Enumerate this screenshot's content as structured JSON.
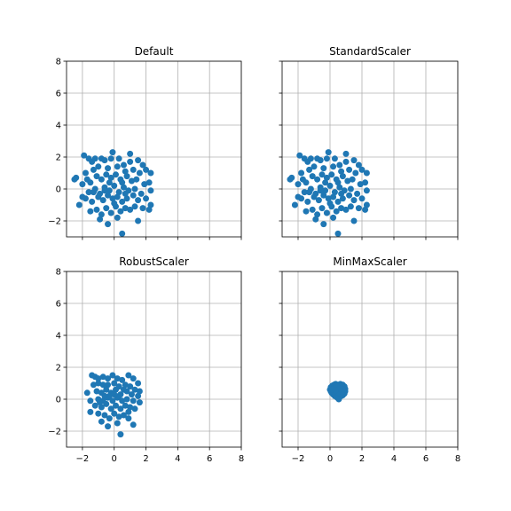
{
  "colors": {
    "points": "#1f77b4",
    "grid": "#b0b0b0",
    "background": "#ffffff"
  },
  "axes": {
    "x_range": [
      -3,
      8
    ],
    "y_range": [
      -3,
      8
    ],
    "x_ticks": [
      -2,
      0,
      2,
      4,
      6,
      8
    ],
    "y_ticks": [
      -2,
      0,
      2,
      4,
      6,
      8
    ],
    "x_tick_labels": [
      "−2",
      "0",
      "2",
      "4",
      "6",
      "8"
    ],
    "y_tick_labels": [
      "−2",
      "0",
      "2",
      "4",
      "6",
      "8"
    ]
  },
  "chart_data": [
    {
      "type": "scatter",
      "title": "Default",
      "grid": true,
      "xlim": [
        -3,
        8
      ],
      "ylim": [
        -3,
        8
      ],
      "points": [
        [
          -2.5,
          0.6
        ],
        [
          -2.4,
          0.7
        ],
        [
          -1.9,
          2.1
        ],
        [
          -1.6,
          1.9
        ],
        [
          -1.4,
          1.7
        ],
        [
          -1.2,
          1.9
        ],
        [
          -0.8,
          1.9
        ],
        [
          -0.6,
          1.8
        ],
        [
          -0.2,
          1.9
        ],
        [
          -0.1,
          2.3
        ],
        [
          0.3,
          1.9
        ],
        [
          0.6,
          1.5
        ],
        [
          1.0,
          2.2
        ],
        [
          1.5,
          1.8
        ],
        [
          1.8,
          1.5
        ],
        [
          2.0,
          1.2
        ],
        [
          2.3,
          1.0
        ],
        [
          -1.8,
          1.0
        ],
        [
          -1.3,
          1.2
        ],
        [
          -1.0,
          1.4
        ],
        [
          -0.4,
          1.3
        ],
        [
          0.2,
          1.4
        ],
        [
          0.7,
          1.1
        ],
        [
          1.2,
          1.2
        ],
        [
          1.6,
          1.0
        ],
        [
          -2.0,
          0.3
        ],
        [
          -1.7,
          0.6
        ],
        [
          -1.5,
          0.4
        ],
        [
          -1.1,
          0.8
        ],
        [
          -0.8,
          0.6
        ],
        [
          -0.5,
          0.9
        ],
        [
          -0.2,
          0.7
        ],
        [
          0.1,
          0.9
        ],
        [
          0.4,
          0.6
        ],
        [
          0.8,
          0.8
        ],
        [
          1.1,
          0.5
        ],
        [
          1.4,
          0.6
        ],
        [
          1.9,
          0.3
        ],
        [
          2.2,
          0.4
        ],
        [
          -2.0,
          -0.5
        ],
        [
          -1.6,
          -0.2
        ],
        [
          -1.2,
          0.0
        ],
        [
          -0.9,
          -0.3
        ],
        [
          -0.6,
          0.1
        ],
        [
          -0.3,
          -0.1
        ],
        [
          0.0,
          0.2
        ],
        [
          0.3,
          -0.2
        ],
        [
          0.6,
          0.1
        ],
        [
          0.9,
          -0.1
        ],
        [
          1.3,
          0.0
        ],
        [
          1.7,
          -0.3
        ],
        [
          2.3,
          -0.1
        ],
        [
          -2.2,
          -1.0
        ],
        [
          -1.8,
          -0.6
        ],
        [
          -1.4,
          -0.8
        ],
        [
          -1.0,
          -0.5
        ],
        [
          -0.7,
          -0.7
        ],
        [
          -0.4,
          -0.4
        ],
        [
          -0.1,
          -0.6
        ],
        [
          0.2,
          -0.5
        ],
        [
          0.5,
          -0.8
        ],
        [
          0.8,
          -0.6
        ],
        [
          1.2,
          -0.4
        ],
        [
          1.5,
          -0.7
        ],
        [
          2.0,
          -0.6
        ],
        [
          -1.5,
          -1.4
        ],
        [
          -1.1,
          -1.3
        ],
        [
          -0.8,
          -1.6
        ],
        [
          -0.5,
          -1.2
        ],
        [
          -0.2,
          -1.5
        ],
        [
          0.1,
          -1.1
        ],
        [
          0.4,
          -1.4
        ],
        [
          0.7,
          -1.2
        ],
        [
          1.0,
          -1.3
        ],
        [
          1.3,
          -1.1
        ],
        [
          1.8,
          -1.2
        ],
        [
          2.3,
          -1.0
        ],
        [
          -0.9,
          -1.9
        ],
        [
          -0.4,
          -2.2
        ],
        [
          0.2,
          -1.8
        ],
        [
          1.5,
          -2.0
        ],
        [
          2.2,
          -1.3
        ],
        [
          0.5,
          -2.8
        ],
        [
          -0.3,
          0.4
        ],
        [
          0.5,
          0.4
        ],
        [
          -1.3,
          -0.2
        ],
        [
          1.0,
          1.7
        ],
        [
          -0.6,
          -0.1
        ],
        [
          0.0,
          -0.9
        ],
        [
          0.7,
          -0.3
        ]
      ]
    },
    {
      "type": "scatter",
      "title": "StandardScaler",
      "grid": true,
      "xlim": [
        -3,
        8
      ],
      "ylim": [
        -3,
        8
      ],
      "points": [
        [
          -2.5,
          0.6
        ],
        [
          -2.4,
          0.7
        ],
        [
          -1.9,
          2.1
        ],
        [
          -1.6,
          1.9
        ],
        [
          -1.4,
          1.7
        ],
        [
          -1.2,
          1.9
        ],
        [
          -0.8,
          1.9
        ],
        [
          -0.6,
          1.8
        ],
        [
          -0.2,
          1.9
        ],
        [
          -0.1,
          2.3
        ],
        [
          0.3,
          1.9
        ],
        [
          0.6,
          1.5
        ],
        [
          1.0,
          2.2
        ],
        [
          1.5,
          1.8
        ],
        [
          1.8,
          1.5
        ],
        [
          2.0,
          1.2
        ],
        [
          2.3,
          1.0
        ],
        [
          -1.8,
          1.0
        ],
        [
          -1.3,
          1.2
        ],
        [
          -1.0,
          1.4
        ],
        [
          -0.4,
          1.3
        ],
        [
          0.2,
          1.4
        ],
        [
          0.7,
          1.1
        ],
        [
          1.2,
          1.2
        ],
        [
          1.6,
          1.0
        ],
        [
          -2.0,
          0.3
        ],
        [
          -1.7,
          0.6
        ],
        [
          -1.5,
          0.4
        ],
        [
          -1.1,
          0.8
        ],
        [
          -0.8,
          0.6
        ],
        [
          -0.5,
          0.9
        ],
        [
          -0.2,
          0.7
        ],
        [
          0.1,
          0.9
        ],
        [
          0.4,
          0.6
        ],
        [
          0.8,
          0.8
        ],
        [
          1.1,
          0.5
        ],
        [
          1.4,
          0.6
        ],
        [
          1.9,
          0.3
        ],
        [
          2.2,
          0.4
        ],
        [
          -2.0,
          -0.5
        ],
        [
          -1.6,
          -0.2
        ],
        [
          -1.2,
          0.0
        ],
        [
          -0.9,
          -0.3
        ],
        [
          -0.6,
          0.1
        ],
        [
          -0.3,
          -0.1
        ],
        [
          0.0,
          0.2
        ],
        [
          0.3,
          -0.2
        ],
        [
          0.6,
          0.1
        ],
        [
          0.9,
          -0.1
        ],
        [
          1.3,
          0.0
        ],
        [
          1.7,
          -0.3
        ],
        [
          2.3,
          -0.1
        ],
        [
          -2.2,
          -1.0
        ],
        [
          -1.8,
          -0.6
        ],
        [
          -1.4,
          -0.8
        ],
        [
          -1.0,
          -0.5
        ],
        [
          -0.7,
          -0.7
        ],
        [
          -0.4,
          -0.4
        ],
        [
          -0.1,
          -0.6
        ],
        [
          0.2,
          -0.5
        ],
        [
          0.5,
          -0.8
        ],
        [
          0.8,
          -0.6
        ],
        [
          1.2,
          -0.4
        ],
        [
          1.5,
          -0.7
        ],
        [
          2.0,
          -0.6
        ],
        [
          -1.5,
          -1.4
        ],
        [
          -1.1,
          -1.3
        ],
        [
          -0.8,
          -1.6
        ],
        [
          -0.5,
          -1.2
        ],
        [
          -0.2,
          -1.5
        ],
        [
          0.1,
          -1.1
        ],
        [
          0.4,
          -1.4
        ],
        [
          0.7,
          -1.2
        ],
        [
          1.0,
          -1.3
        ],
        [
          1.3,
          -1.1
        ],
        [
          1.8,
          -1.2
        ],
        [
          2.3,
          -1.0
        ],
        [
          -0.9,
          -1.9
        ],
        [
          -0.4,
          -2.2
        ],
        [
          0.2,
          -1.8
        ],
        [
          1.5,
          -2.0
        ],
        [
          2.2,
          -1.3
        ],
        [
          0.5,
          -2.8
        ],
        [
          -0.3,
          0.4
        ],
        [
          0.5,
          0.4
        ],
        [
          -1.3,
          -0.2
        ],
        [
          1.0,
          1.7
        ],
        [
          -0.6,
          -0.1
        ],
        [
          0.0,
          -0.9
        ],
        [
          0.7,
          -0.3
        ]
      ]
    },
    {
      "type": "scatter",
      "title": "RobustScaler",
      "grid": true,
      "xlim": [
        -3,
        8
      ],
      "ylim": [
        -3,
        8
      ],
      "points": [
        [
          -1.7,
          0.4
        ],
        [
          -1.4,
          1.5
        ],
        [
          -1.2,
          1.4
        ],
        [
          -1.0,
          1.3
        ],
        [
          -0.7,
          1.4
        ],
        [
          -0.4,
          1.3
        ],
        [
          -0.1,
          1.5
        ],
        [
          0.2,
          1.3
        ],
        [
          0.5,
          1.2
        ],
        [
          0.9,
          1.5
        ],
        [
          1.2,
          1.3
        ],
        [
          1.5,
          1.0
        ],
        [
          -1.3,
          0.9
        ],
        [
          -1.0,
          1.0
        ],
        [
          -0.7,
          0.9
        ],
        [
          -0.4,
          0.9
        ],
        [
          0.0,
          1.0
        ],
        [
          0.3,
          0.8
        ],
        [
          0.7,
          0.9
        ],
        [
          1.0,
          0.8
        ],
        [
          1.3,
          0.6
        ],
        [
          1.6,
          0.5
        ],
        [
          -1.1,
          0.5
        ],
        [
          -0.8,
          0.4
        ],
        [
          -0.5,
          0.6
        ],
        [
          -0.2,
          0.4
        ],
        [
          0.1,
          0.6
        ],
        [
          0.4,
          0.3
        ],
        [
          0.8,
          0.5
        ],
        [
          1.1,
          0.3
        ],
        [
          1.5,
          0.2
        ],
        [
          -1.5,
          -0.1
        ],
        [
          -1.0,
          0.0
        ],
        [
          -0.7,
          -0.1
        ],
        [
          -0.4,
          0.1
        ],
        [
          -0.1,
          -0.1
        ],
        [
          0.2,
          0.1
        ],
        [
          0.5,
          -0.1
        ],
        [
          0.8,
          0.0
        ],
        [
          1.2,
          -0.1
        ],
        [
          1.6,
          -0.2
        ],
        [
          -1.2,
          -0.4
        ],
        [
          -0.8,
          -0.5
        ],
        [
          -0.5,
          -0.3
        ],
        [
          -0.2,
          -0.6
        ],
        [
          0.1,
          -0.4
        ],
        [
          0.4,
          -0.6
        ],
        [
          0.7,
          -0.4
        ],
        [
          1.0,
          -0.5
        ],
        [
          1.3,
          -0.6
        ],
        [
          -1.5,
          -0.8
        ],
        [
          -1.0,
          -0.9
        ],
        [
          -0.6,
          -1.0
        ],
        [
          -0.3,
          -1.2
        ],
        [
          0.0,
          -0.9
        ],
        [
          0.3,
          -1.1
        ],
        [
          0.6,
          -1.0
        ],
        [
          0.9,
          -1.2
        ],
        [
          -0.8,
          -1.4
        ],
        [
          -0.4,
          -1.7
        ],
        [
          0.2,
          -1.5
        ],
        [
          1.2,
          -1.6
        ],
        [
          0.4,
          -2.2
        ],
        [
          -0.3,
          0.2
        ],
        [
          0.3,
          0.2
        ],
        [
          0.6,
          0.6
        ],
        [
          -0.6,
          0.2
        ],
        [
          0.0,
          0.3
        ],
        [
          -0.9,
          -0.2
        ],
        [
          0.9,
          -0.8
        ]
      ]
    },
    {
      "type": "scatter",
      "title": "MinMaxScaler",
      "grid": true,
      "xlim": [
        -3,
        8
      ],
      "ylim": [
        -3,
        8
      ],
      "points": [
        [
          0.0,
          0.6
        ],
        [
          0.05,
          0.75
        ],
        [
          0.15,
          0.85
        ],
        [
          0.25,
          0.9
        ],
        [
          0.35,
          0.95
        ],
        [
          0.5,
          0.9
        ],
        [
          0.65,
          0.95
        ],
        [
          0.8,
          0.9
        ],
        [
          0.9,
          0.8
        ],
        [
          0.95,
          0.65
        ],
        [
          0.95,
          0.5
        ],
        [
          0.9,
          0.35
        ],
        [
          0.8,
          0.25
        ],
        [
          0.7,
          0.2
        ],
        [
          0.6,
          0.15
        ],
        [
          0.45,
          0.1
        ],
        [
          0.3,
          0.2
        ],
        [
          0.2,
          0.3
        ],
        [
          0.1,
          0.4
        ],
        [
          0.05,
          0.5
        ],
        [
          0.25,
          0.5
        ],
        [
          0.4,
          0.6
        ],
        [
          0.55,
          0.5
        ],
        [
          0.7,
          0.6
        ],
        [
          0.5,
          0.7
        ],
        [
          0.35,
          0.35
        ],
        [
          0.65,
          0.35
        ],
        [
          0.5,
          0.3
        ],
        [
          0.8,
          0.6
        ],
        [
          0.25,
          0.7
        ],
        [
          0.6,
          0.8
        ],
        [
          0.4,
          0.8
        ],
        [
          0.75,
          0.45
        ],
        [
          0.15,
          0.6
        ],
        [
          0.45,
          0.45
        ],
        [
          0.55,
          0.0
        ],
        [
          0.6,
          0.65
        ],
        [
          0.35,
          0.55
        ]
      ]
    }
  ]
}
